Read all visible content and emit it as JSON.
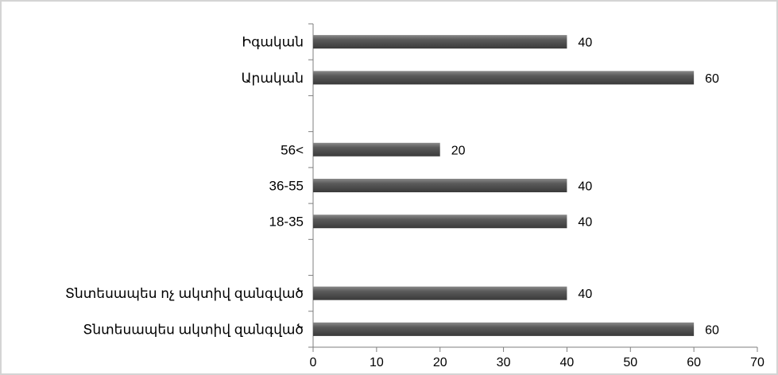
{
  "chart_data": {
    "type": "bar",
    "orientation": "horizontal",
    "title": "",
    "xlabel": "",
    "ylabel": "",
    "xlim": [
      0,
      70
    ],
    "x_ticks": [
      "0",
      "10",
      "20",
      "30",
      "40",
      "50",
      "60",
      "70"
    ],
    "grid": false,
    "legend": "none",
    "bar_color": "#595959",
    "categories": [
      "Իգական",
      "Արական",
      "",
      "56<",
      "36-55",
      "18-35",
      "",
      "Տնտեսապես ոչ ակտիվ զանգված",
      "Տնտեսապես ակտիվ զանգված"
    ],
    "values": [
      40,
      60,
      null,
      20,
      40,
      40,
      null,
      40,
      60
    ],
    "value_labels": [
      "40",
      "60",
      "",
      "20",
      "40",
      "40",
      "",
      "40",
      "60"
    ]
  }
}
